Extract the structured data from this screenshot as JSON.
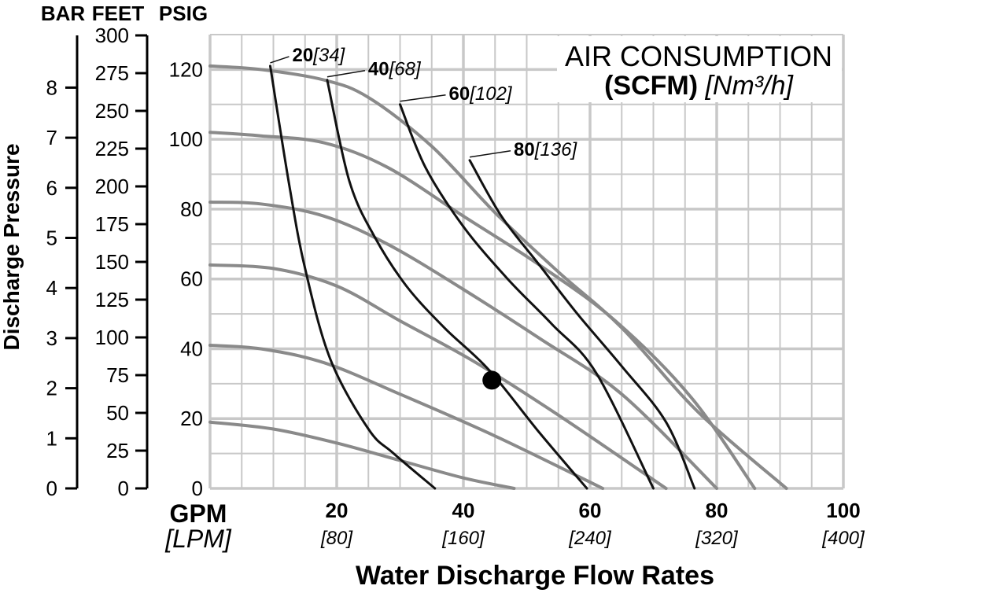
{
  "chart_data": {
    "type": "line",
    "title_line1": "AIR CONSUMPTION",
    "title_bold": "(SCFM)",
    "title_italic": "[Nm³/h]",
    "xlabel": "Water Discharge Flow Rates",
    "x_unit_primary": "GPM",
    "x_unit_secondary": "[LPM]",
    "ylabel": "Discharge Pressure",
    "xlim": [
      0,
      100
    ],
    "ylim": [
      0,
      130
    ],
    "x_ticks": [
      {
        "value": 20,
        "label": "20",
        "sub": "[80]"
      },
      {
        "value": 40,
        "label": "40",
        "sub": "[160]"
      },
      {
        "value": 60,
        "label": "60",
        "sub": "[240]"
      },
      {
        "value": 80,
        "label": "80",
        "sub": "[320]"
      },
      {
        "value": 100,
        "label": "100",
        "sub": "[400]"
      }
    ],
    "psig_axis": {
      "label": "PSIG",
      "ticks": [
        0,
        20,
        40,
        60,
        80,
        100,
        120
      ]
    },
    "feet_axis": {
      "label": "FEET",
      "ticks": [
        "0",
        "25",
        "50",
        "75",
        "100",
        "125",
        "150",
        "175",
        "200",
        "225",
        "250",
        "275",
        "300"
      ]
    },
    "bar_axis": {
      "label": "BAR",
      "ticks": [
        "0",
        "1",
        "2",
        "3",
        "4",
        "5",
        "6",
        "7",
        "8"
      ]
    },
    "performance_curves": [
      {
        "points": [
          [
            0,
            19
          ],
          [
            10,
            17
          ],
          [
            20,
            13
          ],
          [
            30,
            8
          ],
          [
            40,
            3
          ],
          [
            48,
            0
          ]
        ]
      },
      {
        "points": [
          [
            0,
            41
          ],
          [
            8,
            40
          ],
          [
            18,
            36
          ],
          [
            30,
            27
          ],
          [
            45,
            15
          ],
          [
            62,
            0
          ]
        ]
      },
      {
        "points": [
          [
            0,
            64
          ],
          [
            10,
            63
          ],
          [
            20,
            58
          ],
          [
            30,
            48
          ],
          [
            42,
            36
          ],
          [
            55,
            21
          ],
          [
            72,
            0
          ]
        ]
      },
      {
        "points": [
          [
            0,
            82
          ],
          [
            8,
            81.5
          ],
          [
            18,
            78
          ],
          [
            28,
            70
          ],
          [
            40,
            57
          ],
          [
            52,
            43
          ],
          [
            65,
            27
          ],
          [
            80,
            0
          ]
        ]
      },
      {
        "points": [
          [
            0,
            102
          ],
          [
            8,
            101
          ],
          [
            18,
            99
          ],
          [
            28,
            92
          ],
          [
            40,
            78
          ],
          [
            52,
            64
          ],
          [
            64,
            48
          ],
          [
            76,
            26
          ],
          [
            86,
            0
          ]
        ]
      },
      {
        "points": [
          [
            0,
            121
          ],
          [
            8,
            120
          ],
          [
            18,
            117
          ],
          [
            25,
            112
          ],
          [
            35,
            98
          ],
          [
            45,
            79
          ],
          [
            55,
            62
          ],
          [
            65,
            46
          ],
          [
            77,
            22
          ],
          [
            91,
            0
          ]
        ]
      }
    ],
    "air_curves": [
      {
        "label": "20",
        "label_sub": "[34]",
        "points": [
          [
            9.5,
            121
          ],
          [
            12.5,
            87
          ],
          [
            15,
            63
          ],
          [
            19,
            37
          ],
          [
            25,
            17
          ],
          [
            29,
            10
          ],
          [
            35.5,
            0
          ]
        ]
      },
      {
        "label": "40",
        "label_sub": "[68]",
        "points": [
          [
            18.5,
            117
          ],
          [
            22,
            88
          ],
          [
            26,
            72
          ],
          [
            31,
            58
          ],
          [
            37,
            46
          ],
          [
            44,
            34
          ],
          [
            52,
            16
          ],
          [
            59.5,
            0
          ]
        ]
      },
      {
        "label": "60",
        "label_sub": "[102]",
        "points": [
          [
            30,
            110
          ],
          [
            34,
            92
          ],
          [
            40,
            75
          ],
          [
            47,
            60
          ],
          [
            54,
            47
          ],
          [
            61,
            33
          ],
          [
            70,
            0
          ]
        ]
      },
      {
        "label": "80",
        "label_sub": "[136]",
        "points": [
          [
            41,
            94
          ],
          [
            46,
            78
          ],
          [
            52,
            64
          ],
          [
            58,
            50
          ],
          [
            65,
            35
          ],
          [
            72,
            19
          ],
          [
            76.5,
            0
          ]
        ]
      }
    ],
    "operating_point": {
      "x": 44.5,
      "y": 31
    }
  }
}
